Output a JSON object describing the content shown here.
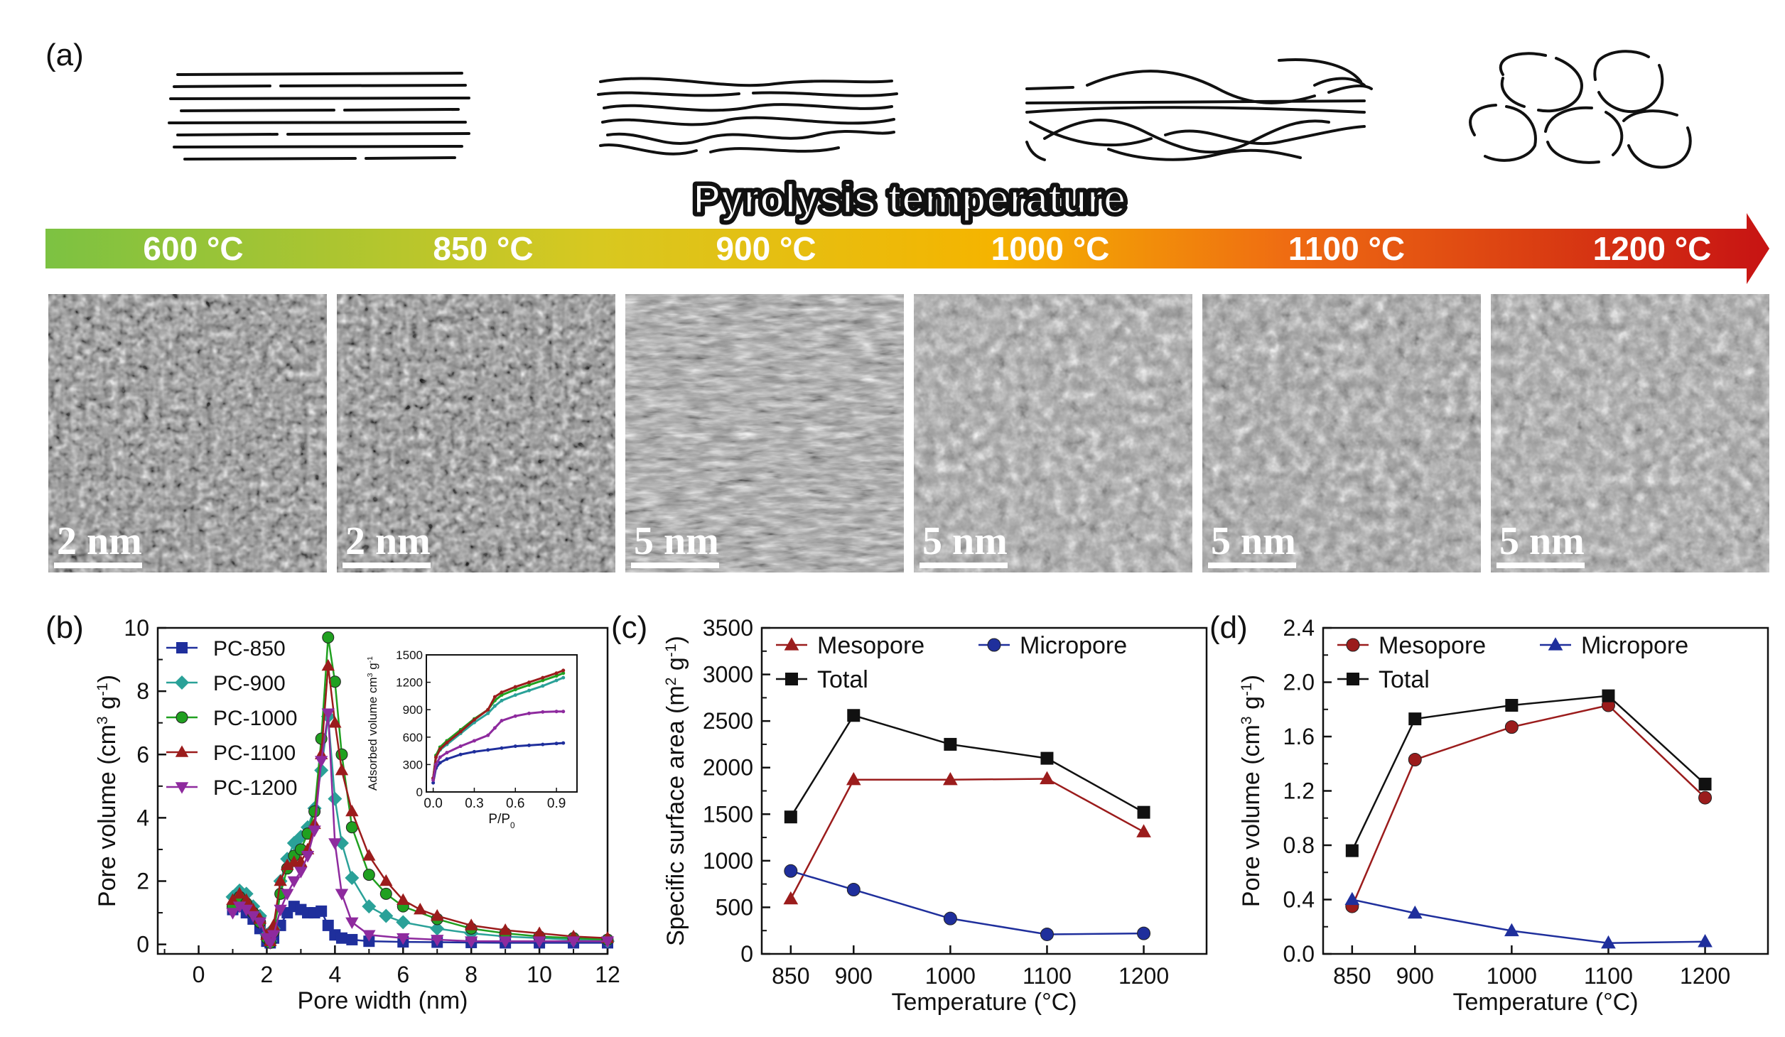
{
  "panel_labels": {
    "a": "(a)",
    "b": "(b)",
    "c": "(c)",
    "d": "(d)"
  },
  "arrow": {
    "title": "Pyrolysis temperature",
    "temperatures": [
      "600 °C",
      "850 °C",
      "900 °C",
      "1000 °C",
      "1100 °C",
      "1200 °C"
    ],
    "colors": [
      "#7cc242",
      "#d8c820",
      "#f5b400",
      "#ef6c12",
      "#c71313"
    ]
  },
  "tem_images": [
    {
      "scale": "2 nm"
    },
    {
      "scale": "2 nm"
    },
    {
      "scale": "5 nm"
    },
    {
      "scale": "5 nm"
    },
    {
      "scale": "5 nm"
    },
    {
      "scale": "5 nm"
    }
  ],
  "chart_data": [
    {
      "id": "b",
      "type": "line",
      "title": "",
      "xlabel": "Pore width (nm)",
      "ylabel": "Pore volume (cm3 g-1)",
      "ylabel_parts": {
        "main": "Pore volume (cm",
        "sup1": "3",
        "mid": " g",
        "sup2": "-1",
        "end": ")"
      },
      "xlim": [
        -1.2,
        12
      ],
      "ylim": [
        -0.3,
        10
      ],
      "xticks": [
        0,
        2,
        4,
        6,
        8,
        10,
        12
      ],
      "yticks": [
        0,
        2,
        4,
        6,
        8,
        10
      ],
      "legend_position": "top-left",
      "series": [
        {
          "name": "PC-850",
          "color": "#1f2f9c",
          "marker": "square",
          "x": [
            1.0,
            1.2,
            1.4,
            1.6,
            1.8,
            2.0,
            2.1,
            2.2,
            2.4,
            2.6,
            2.8,
            3.0,
            3.2,
            3.4,
            3.6,
            3.8,
            4.0,
            4.2,
            4.5,
            5.0,
            6.0,
            7.0,
            8.0,
            9.0,
            10.0,
            11.0,
            12.0
          ],
          "y": [
            1.1,
            1.2,
            1.0,
            0.8,
            0.5,
            0.1,
            0.05,
            0.2,
            0.6,
            1.0,
            1.2,
            1.1,
            1.0,
            1.0,
            1.05,
            0.6,
            0.3,
            0.2,
            0.15,
            0.1,
            0.08,
            0.07,
            0.06,
            0.05,
            0.05,
            0.05,
            0.05
          ]
        },
        {
          "name": "PC-900",
          "color": "#2aa198",
          "marker": "diamond",
          "x": [
            1.0,
            1.2,
            1.4,
            1.6,
            1.8,
            2.0,
            2.1,
            2.2,
            2.4,
            2.6,
            2.8,
            3.0,
            3.2,
            3.4,
            3.6,
            3.8,
            4.0,
            4.2,
            4.5,
            5.0,
            5.5,
            6.0,
            7.0,
            8.0,
            9.0,
            10.0,
            11.0,
            12.0
          ],
          "y": [
            1.5,
            1.7,
            1.6,
            1.2,
            0.9,
            0.3,
            0.1,
            0.5,
            2.0,
            2.7,
            3.2,
            3.4,
            3.7,
            4.3,
            5.5,
            7.2,
            4.6,
            3.2,
            2.1,
            1.2,
            0.9,
            0.7,
            0.5,
            0.35,
            0.25,
            0.2,
            0.15,
            0.1
          ]
        },
        {
          "name": "PC-1000",
          "color": "#20a020",
          "marker": "circle",
          "x": [
            1.0,
            1.2,
            1.4,
            1.6,
            1.8,
            2.0,
            2.1,
            2.2,
            2.4,
            2.6,
            2.8,
            3.0,
            3.2,
            3.4,
            3.6,
            3.8,
            4.0,
            4.2,
            4.5,
            5.0,
            5.5,
            6.0,
            7.0,
            8.0,
            9.0,
            10.0,
            11.0,
            12.0
          ],
          "y": [
            1.2,
            1.5,
            1.3,
            1.0,
            0.7,
            0.2,
            0.05,
            0.4,
            1.6,
            2.4,
            2.8,
            3.0,
            3.5,
            4.2,
            6.5,
            9.7,
            8.3,
            6.0,
            3.7,
            2.2,
            1.6,
            1.2,
            0.8,
            0.5,
            0.35,
            0.25,
            0.2,
            0.15
          ]
        },
        {
          "name": "PC-1100",
          "color": "#9b1c1c",
          "marker": "triangle-up",
          "x": [
            1.0,
            1.2,
            1.4,
            1.6,
            1.8,
            2.0,
            2.1,
            2.2,
            2.4,
            2.6,
            2.8,
            3.0,
            3.2,
            3.4,
            3.6,
            3.8,
            4.0,
            4.2,
            4.5,
            5.0,
            5.5,
            6.0,
            6.5,
            7.0,
            8.0,
            9.0,
            10.0,
            11.0,
            12.0
          ],
          "y": [
            1.4,
            1.6,
            1.4,
            1.1,
            0.8,
            0.3,
            0.1,
            0.6,
            2.0,
            2.5,
            2.6,
            2.6,
            3.0,
            3.8,
            6.0,
            8.8,
            7.0,
            5.5,
            4.2,
            2.8,
            2.0,
            1.4,
            1.1,
            0.9,
            0.6,
            0.45,
            0.35,
            0.25,
            0.2
          ]
        },
        {
          "name": "PC-1200",
          "color": "#8e2a9e",
          "marker": "triangle-down",
          "x": [
            1.0,
            1.2,
            1.4,
            1.6,
            1.8,
            2.0,
            2.1,
            2.2,
            2.4,
            2.6,
            2.8,
            3.0,
            3.2,
            3.4,
            3.6,
            3.8,
            4.0,
            4.2,
            4.5,
            5.0,
            6.0,
            7.0,
            8.0,
            9.0,
            10.0,
            11.0,
            12.0
          ],
          "y": [
            1.0,
            1.2,
            1.1,
            0.9,
            0.7,
            0.2,
            0.05,
            0.3,
            1.1,
            1.6,
            2.0,
            2.3,
            2.8,
            3.6,
            5.8,
            7.3,
            3.2,
            1.6,
            0.7,
            0.3,
            0.2,
            0.15,
            0.1,
            0.1,
            0.1,
            0.1,
            0.1
          ]
        }
      ],
      "inset": {
        "type": "line",
        "xlabel": "P/P0",
        "ylabel": "Adsorbed volume cm3 g-1",
        "ylabel_parts": {
          "main": "Adsorbed volume cm",
          "sup1": "3",
          "mid": " g",
          "sup2": "-1"
        },
        "xlabel_parts": {
          "main": "P/P",
          "sub": "0"
        },
        "xlim": [
          -0.05,
          1.05
        ],
        "ylim": [
          0,
          1500
        ],
        "xticks": [
          0.0,
          0.3,
          0.6,
          0.9
        ],
        "yticks": [
          0,
          300,
          600,
          900,
          1200,
          1500
        ],
        "series": [
          {
            "name": "PC-850",
            "color": "#1f2f9c",
            "x": [
              0.0,
              0.02,
              0.05,
              0.1,
              0.2,
              0.3,
              0.4,
              0.5,
              0.6,
              0.7,
              0.8,
              0.9,
              0.95
            ],
            "y": [
              100,
              260,
              320,
              360,
              410,
              440,
              460,
              480,
              500,
              510,
              520,
              530,
              535
            ]
          },
          {
            "name": "PC-900",
            "color": "#2aa198",
            "x": [
              0.0,
              0.02,
              0.05,
              0.1,
              0.2,
              0.3,
              0.4,
              0.45,
              0.5,
              0.6,
              0.7,
              0.8,
              0.9,
              0.95
            ],
            "y": [
              150,
              380,
              460,
              520,
              640,
              760,
              860,
              940,
              1000,
              1060,
              1110,
              1160,
              1220,
              1250
            ]
          },
          {
            "name": "PC-1000",
            "color": "#20a020",
            "x": [
              0.0,
              0.02,
              0.05,
              0.1,
              0.2,
              0.3,
              0.4,
              0.45,
              0.5,
              0.6,
              0.7,
              0.8,
              0.9,
              0.95
            ],
            "y": [
              150,
              400,
              490,
              560,
              680,
              800,
              900,
              1000,
              1060,
              1120,
              1170,
              1220,
              1270,
              1300
            ]
          },
          {
            "name": "PC-1100",
            "color": "#9b1c1c",
            "x": [
              0.0,
              0.02,
              0.05,
              0.1,
              0.2,
              0.3,
              0.4,
              0.45,
              0.5,
              0.6,
              0.7,
              0.8,
              0.9,
              0.95
            ],
            "y": [
              150,
              380,
              470,
              540,
              660,
              790,
              900,
              1040,
              1090,
              1150,
              1200,
              1250,
              1300,
              1330
            ]
          },
          {
            "name": "PC-1200",
            "color": "#8e2a9e",
            "x": [
              0.0,
              0.02,
              0.05,
              0.1,
              0.2,
              0.3,
              0.4,
              0.45,
              0.5,
              0.6,
              0.7,
              0.8,
              0.9,
              0.95
            ],
            "y": [
              130,
              300,
              380,
              430,
              500,
              560,
              620,
              700,
              780,
              830,
              860,
              875,
              880,
              880
            ]
          }
        ]
      }
    },
    {
      "id": "c",
      "type": "line",
      "xlabel": "Temperature (°C)",
      "ylabel": "Specific surface area (m2 g-1)",
      "ylabel_parts": {
        "main": "Specific surface area (m",
        "sup1": "2",
        "mid": " g",
        "sup2": "-1",
        "end": ")"
      },
      "categories": [
        850,
        900,
        1000,
        1100,
        1200
      ],
      "ylim": [
        0,
        3500
      ],
      "yticks": [
        0,
        500,
        1000,
        1500,
        2000,
        2500,
        3000,
        3500
      ],
      "legend_position": "top",
      "series": [
        {
          "name": "Mesopore",
          "color": "#9b1c1c",
          "marker": "triangle-up",
          "values": [
            590,
            1870,
            1870,
            1880,
            1310
          ]
        },
        {
          "name": "Micropore",
          "color": "#1f2f9c",
          "marker": "circle",
          "values": [
            890,
            690,
            380,
            210,
            220
          ]
        },
        {
          "name": "Total",
          "color": "#111111",
          "marker": "square",
          "values": [
            1470,
            2560,
            2250,
            2100,
            1520
          ]
        }
      ]
    },
    {
      "id": "d",
      "type": "line",
      "xlabel": "Temperature (°C)",
      "ylabel": "Pore volume (cm3 g-1)",
      "ylabel_parts": {
        "main": "Pore volume (cm",
        "sup1": "3",
        "mid": " g",
        "sup2": "-1",
        "end": ")"
      },
      "categories": [
        850,
        900,
        1000,
        1100,
        1200
      ],
      "ylim": [
        0,
        2.4
      ],
      "yticks": [
        0.0,
        0.4,
        0.8,
        1.2,
        1.6,
        2.0,
        2.4
      ],
      "legend_position": "top",
      "series": [
        {
          "name": "Mesopore",
          "color": "#9b1c1c",
          "marker": "circle",
          "values": [
            0.35,
            1.43,
            1.67,
            1.83,
            1.15
          ]
        },
        {
          "name": "Micropore",
          "color": "#1f2f9c",
          "marker": "triangle-up",
          "values": [
            0.4,
            0.3,
            0.17,
            0.08,
            0.09
          ]
        },
        {
          "name": "Total",
          "color": "#111111",
          "marker": "square",
          "values": [
            0.76,
            1.73,
            1.83,
            1.9,
            1.25
          ]
        }
      ]
    }
  ]
}
